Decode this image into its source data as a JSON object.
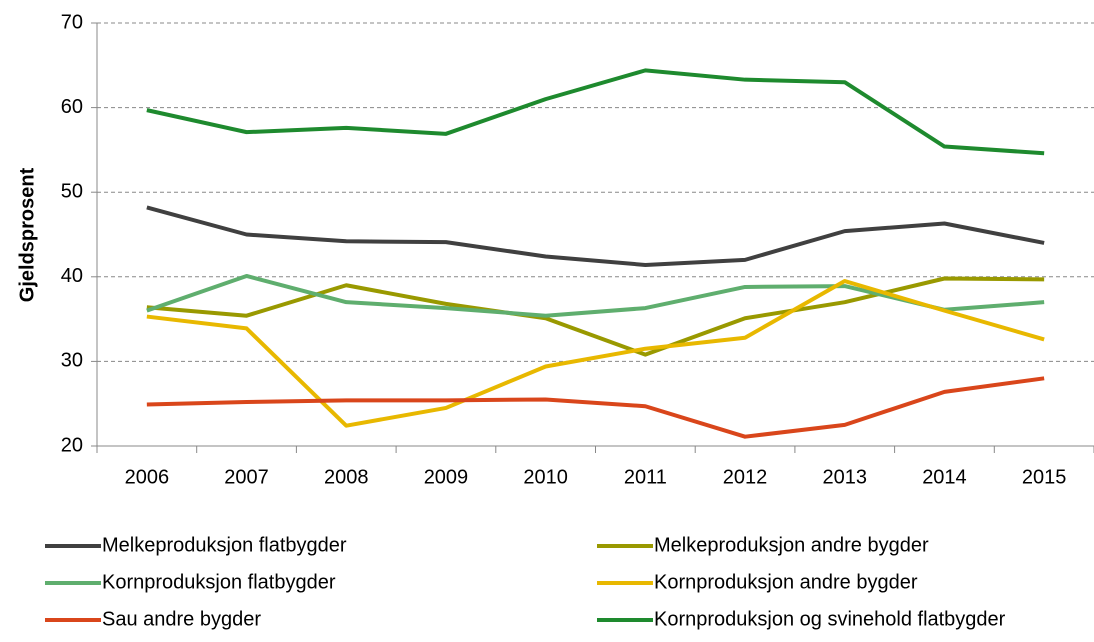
{
  "chart_data": {
    "type": "line",
    "y_label": "Gjeldsprosent",
    "categories": [
      "2006",
      "2007",
      "2008",
      "2009",
      "2010",
      "2011",
      "2012",
      "2013",
      "2014",
      "2015"
    ],
    "series": [
      {
        "name": "Melkeproduksjon flatbygder",
        "color": "#404040",
        "values": [
          48.2,
          45.0,
          44.2,
          44.1,
          42.4,
          41.4,
          42.0,
          45.4,
          46.3,
          44.0
        ]
      },
      {
        "name": "Melkeproduksjon andre bygder",
        "color": "#999900",
        "values": [
          36.4,
          35.4,
          39.0,
          36.8,
          35.1,
          30.8,
          35.1,
          37.0,
          39.8,
          39.7
        ]
      },
      {
        "name": "Kornproduksjon flatbygder",
        "color": "#5fae6e",
        "values": [
          36.0,
          40.1,
          37.0,
          36.3,
          35.4,
          36.3,
          38.8,
          38.9,
          36.1,
          37.0
        ]
      },
      {
        "name": "Kornproduksjon andre bygder",
        "color": "#e8b800",
        "values": [
          35.3,
          33.9,
          22.4,
          24.5,
          29.4,
          31.5,
          32.8,
          39.5,
          36.0,
          32.6
        ]
      },
      {
        "name": "Sau andre bygder",
        "color": "#d9461b",
        "values": [
          24.9,
          25.2,
          25.4,
          25.4,
          25.5,
          24.7,
          21.1,
          22.5,
          26.4,
          28.0
        ]
      },
      {
        "name": "Kornproduksjon og svinehold flatbygder",
        "color": "#1e8a2e",
        "values": [
          59.7,
          57.1,
          57.6,
          56.9,
          61.0,
          64.4,
          63.3,
          63.0,
          55.4,
          54.6
        ]
      }
    ],
    "ylim": [
      20,
      70
    ],
    "yticks": [
      20,
      30,
      40,
      50,
      60,
      70
    ],
    "grid": true,
    "legend": "bottom"
  }
}
